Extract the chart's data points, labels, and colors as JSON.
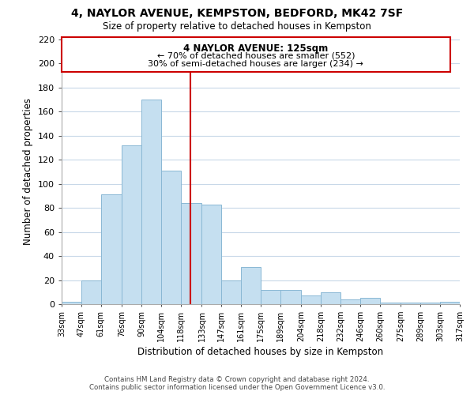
{
  "title": "4, NAYLOR AVENUE, KEMPSTON, BEDFORD, MK42 7SF",
  "subtitle": "Size of property relative to detached houses in Kempston",
  "xlabel": "Distribution of detached houses by size in Kempston",
  "ylabel": "Number of detached properties",
  "bar_color": "#c5dff0",
  "bar_edgecolor": "#8ab8d4",
  "vline_x": 125,
  "vline_color": "#cc0000",
  "bin_edges": [
    33,
    47,
    61,
    76,
    90,
    104,
    118,
    133,
    147,
    161,
    175,
    189,
    204,
    218,
    232,
    246,
    260,
    275,
    289,
    303,
    317
  ],
  "bin_labels": [
    "33sqm",
    "47sqm",
    "61sqm",
    "76sqm",
    "90sqm",
    "104sqm",
    "118sqm",
    "133sqm",
    "147sqm",
    "161sqm",
    "175sqm",
    "189sqm",
    "204sqm",
    "218sqm",
    "232sqm",
    "246sqm",
    "260sqm",
    "275sqm",
    "289sqm",
    "303sqm",
    "317sqm"
  ],
  "counts": [
    2,
    20,
    91,
    132,
    170,
    111,
    84,
    83,
    20,
    31,
    12,
    12,
    7,
    10,
    4,
    5,
    1,
    1,
    1,
    2
  ],
  "ylim": [
    0,
    220
  ],
  "yticks": [
    0,
    20,
    40,
    60,
    80,
    100,
    120,
    140,
    160,
    180,
    200,
    220
  ],
  "annotation_title": "4 NAYLOR AVENUE: 125sqm",
  "annotation_line1": "← 70% of detached houses are smaller (552)",
  "annotation_line2": "30% of semi-detached houses are larger (234) →",
  "annotation_box_color": "#ffffff",
  "annotation_box_edgecolor": "#cc0000",
  "footer_line1": "Contains HM Land Registry data © Crown copyright and database right 2024.",
  "footer_line2": "Contains public sector information licensed under the Open Government Licence v3.0.",
  "background_color": "#ffffff",
  "grid_color": "#c8d8e8"
}
